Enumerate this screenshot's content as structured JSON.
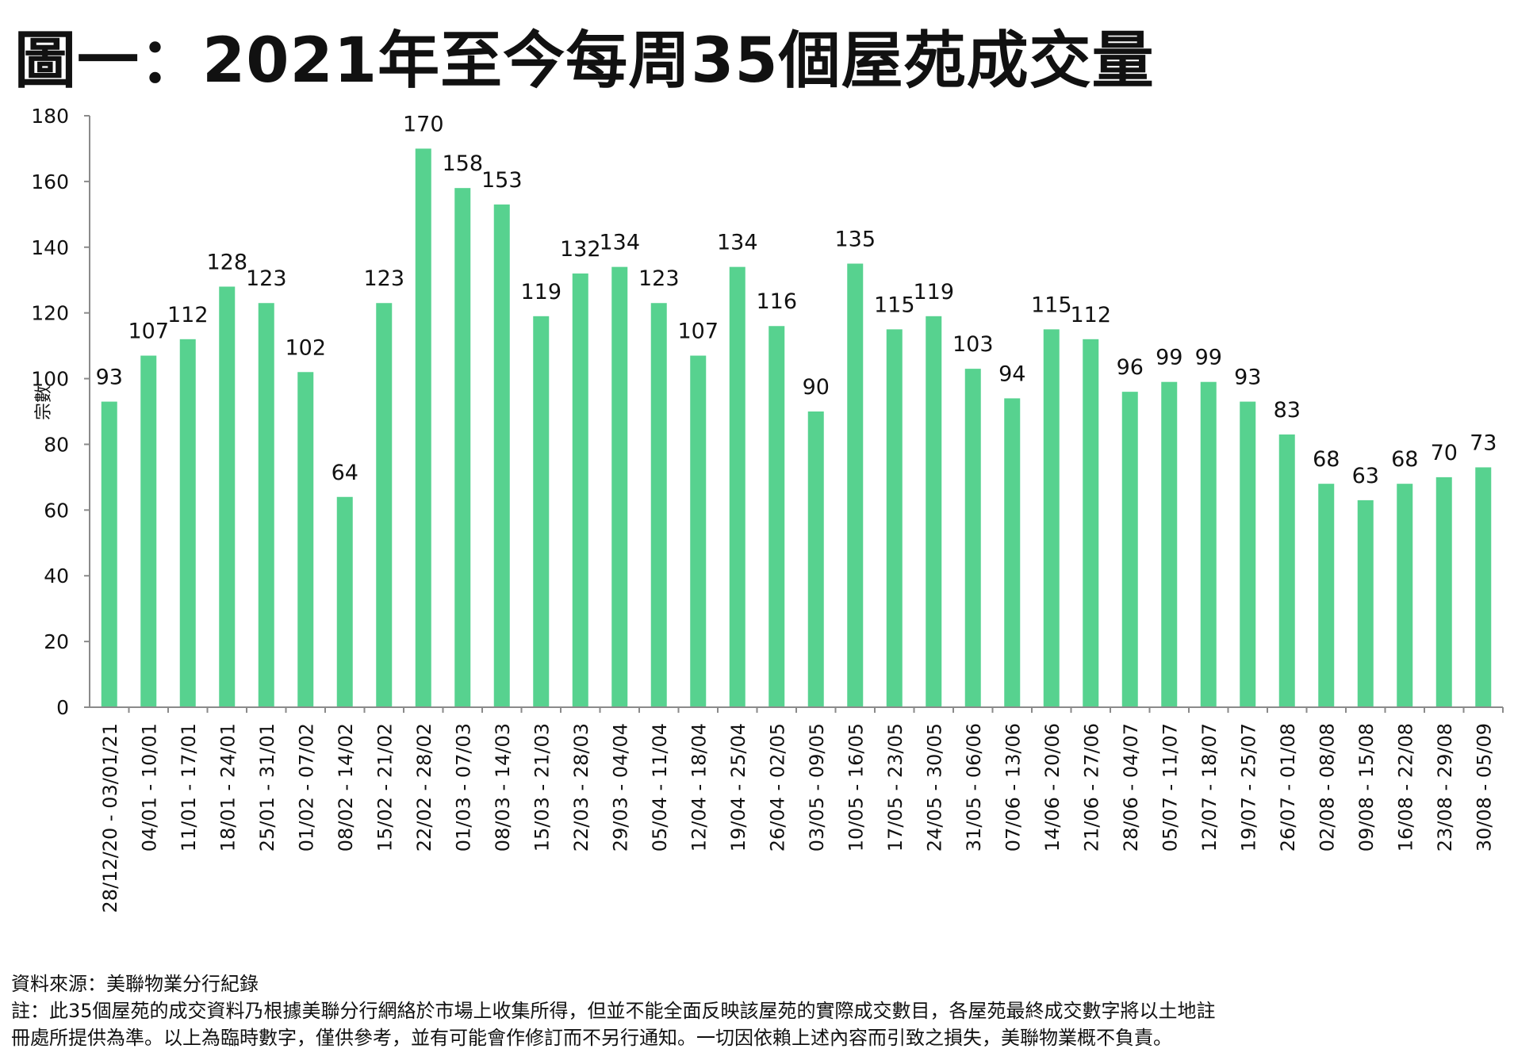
{
  "title": "圖一：2021年至今每周35個屋苑成交量",
  "colors": {
    "bar": "#57d28f",
    "axis": "#8a8a8a"
  },
  "chart_data": {
    "type": "bar",
    "ylabel": "宗數",
    "xlabel": "",
    "ylim": [
      0,
      180
    ],
    "yticks": [
      0,
      20,
      40,
      60,
      80,
      100,
      120,
      140,
      160,
      180
    ],
    "grid": false,
    "categories": [
      "28/12/20 - 03/01/21",
      "04/01 - 10/01",
      "11/01 - 17/01",
      "18/01 - 24/01",
      "25/01 - 31/01",
      "01/02 - 07/02",
      "08/02 - 14/02",
      "15/02 - 21/02",
      "22/02 - 28/02",
      "01/03 - 07/03",
      "08/03 - 14/03",
      "15/03 - 21/03",
      "22/03 - 28/03",
      "29/03 - 04/04",
      "05/04 - 11/04",
      "12/04 - 18/04",
      "19/04 - 25/04",
      "26/04 - 02/05",
      "03/05 - 09/05",
      "10/05 - 16/05",
      "17/05 - 23/05",
      "24/05 - 30/05",
      "31/05 - 06/06",
      "07/06 - 13/06",
      "14/06 - 20/06",
      "21/06 - 27/06",
      "28/06 - 04/07",
      "05/07 - 11/07",
      "12/07 - 18/07",
      "19/07 - 25/07",
      "26/07 - 01/08",
      "02/08 - 08/08",
      "09/08 - 15/08",
      "16/08 - 22/08",
      "23/08 - 29/08",
      "30/08 - 05/09"
    ],
    "values": [
      93,
      107,
      112,
      128,
      123,
      102,
      64,
      123,
      170,
      158,
      153,
      119,
      132,
      134,
      123,
      107,
      134,
      116,
      90,
      135,
      115,
      119,
      103,
      94,
      115,
      112,
      96,
      99,
      99,
      93,
      83,
      68,
      63,
      68,
      70,
      73
    ]
  },
  "footer": {
    "source": "資料來源：美聯物業分行紀錄",
    "note_line1": "註：此35個屋苑的成交資料乃根據美聯分行網絡於市場上收集所得，但並不能全面反映該屋苑的實際成交數目，各屋苑最終成交數字將以土地註",
    "note_line2": "冊處所提供為準。以上為臨時數字，僅供參考，並有可能會作修訂而不另行通知。一切因依賴上述內容而引致之損失，美聯物業概不負責。"
  }
}
